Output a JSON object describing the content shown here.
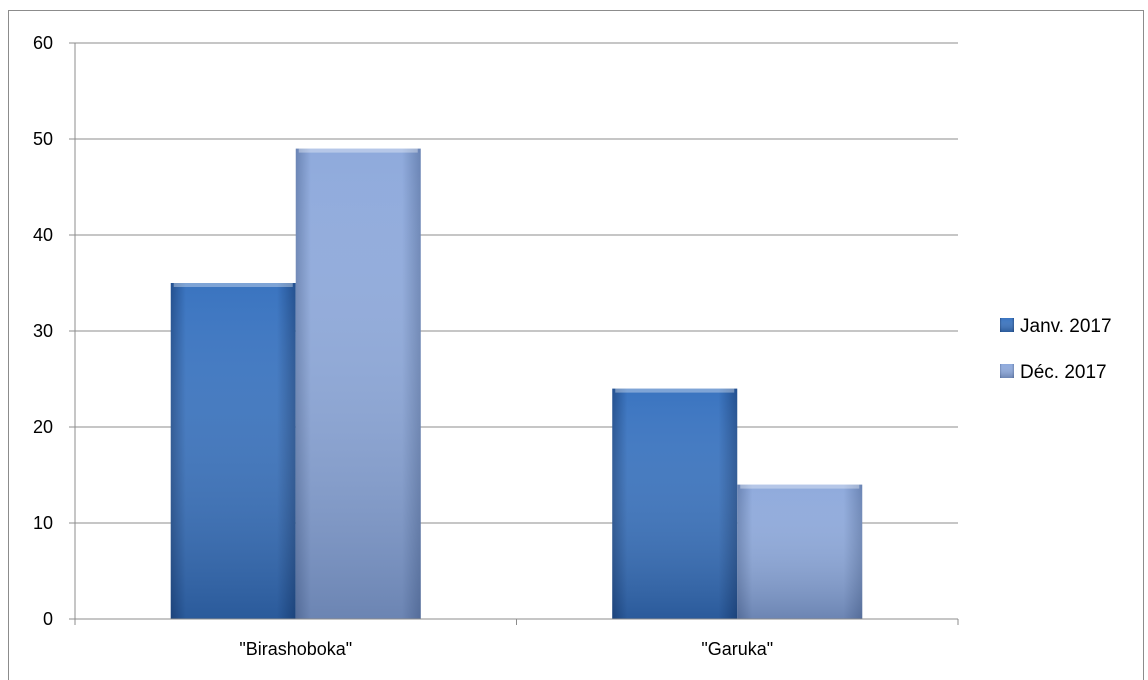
{
  "chart_data": {
    "type": "bar",
    "title": "",
    "xlabel": "",
    "ylabel": "",
    "categories": [
      "\"Birashoboka\"",
      "\"Garuka\""
    ],
    "series": [
      {
        "name": "Janv. 2017",
        "values": [
          35,
          24
        ],
        "color": "#3a74c0"
      },
      {
        "name": "Déc. 2017",
        "values": [
          49,
          14
        ],
        "color": "#8faadc"
      }
    ],
    "ylim": [
      0,
      60
    ],
    "yticks": [
      0,
      10,
      20,
      30,
      40,
      50,
      60
    ],
    "grid": true,
    "legend_position": "right"
  }
}
